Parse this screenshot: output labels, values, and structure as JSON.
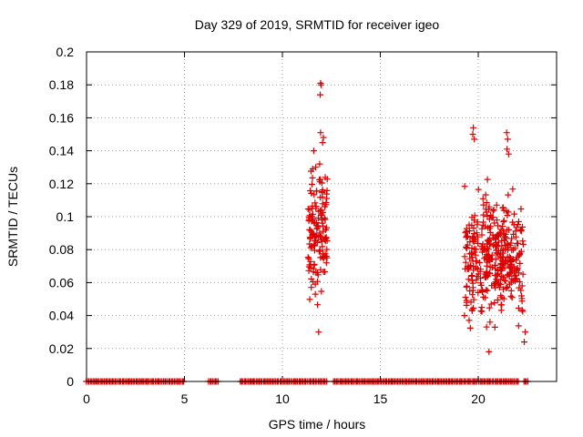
{
  "chart_data": {
    "type": "scatter",
    "title": "Day 329 of 2019, SRMTID for receiver igeo",
    "xlabel": "GPS time / hours",
    "ylabel": "SRMTID / TECUs",
    "xlim": [
      0,
      24
    ],
    "ylim": [
      0,
      0.2
    ],
    "grid": true,
    "marker": "plus",
    "color": "#dd0000",
    "x_ticks": [
      0,
      5,
      10,
      15,
      20
    ],
    "x_tick_labels": [
      "0",
      "5",
      "10",
      "15",
      "20"
    ],
    "y_ticks": [
      0,
      0.02,
      0.04,
      0.06,
      0.08,
      0.1,
      0.12,
      0.14,
      0.16,
      0.18,
      0.2
    ],
    "y_tick_labels": [
      "0",
      "0.02",
      "0.04",
      "0.06",
      "0.08",
      "0.1",
      "0.12",
      "0.14",
      "0.16",
      "0.18",
      "0.2"
    ],
    "series": [
      {
        "name": "SRMTID",
        "clusters": [
          {
            "x_range": [
              11.3,
              12.3
            ],
            "y_range": [
              0.03,
              0.181
            ],
            "count": 140
          },
          {
            "x_range": [
              19.3,
              22.3
            ],
            "y_range": [
              0.018,
              0.154
            ],
            "count": 380
          }
        ],
        "baseline_y": 0,
        "baseline_x_range": [
          0,
          22.6
        ],
        "baseline_gaps": [
          [
            5.0,
            6.2
          ],
          [
            6.8,
            7.8
          ],
          [
            12.3,
            12.6
          ],
          [
            22.1,
            22.3
          ]
        ],
        "x": [
          11.95,
          11.98,
          11.93,
          11.6,
          11.7,
          11.95,
          12.1,
          12.05,
          11.55,
          11.9,
          19.75,
          19.72,
          19.8,
          21.45,
          21.5,
          21.47,
          21.55,
          20.55,
          11.85,
          22.35,
          20.6,
          19.3,
          22.4
        ],
        "y": [
          0.181,
          0.18,
          0.174,
          0.14,
          0.13,
          0.151,
          0.148,
          0.145,
          0.129,
          0.132,
          0.154,
          0.15,
          0.147,
          0.151,
          0.147,
          0.141,
          0.138,
          0.018,
          0.03,
          0.024,
          0.036,
          0.04,
          0.03
        ]
      }
    ]
  }
}
